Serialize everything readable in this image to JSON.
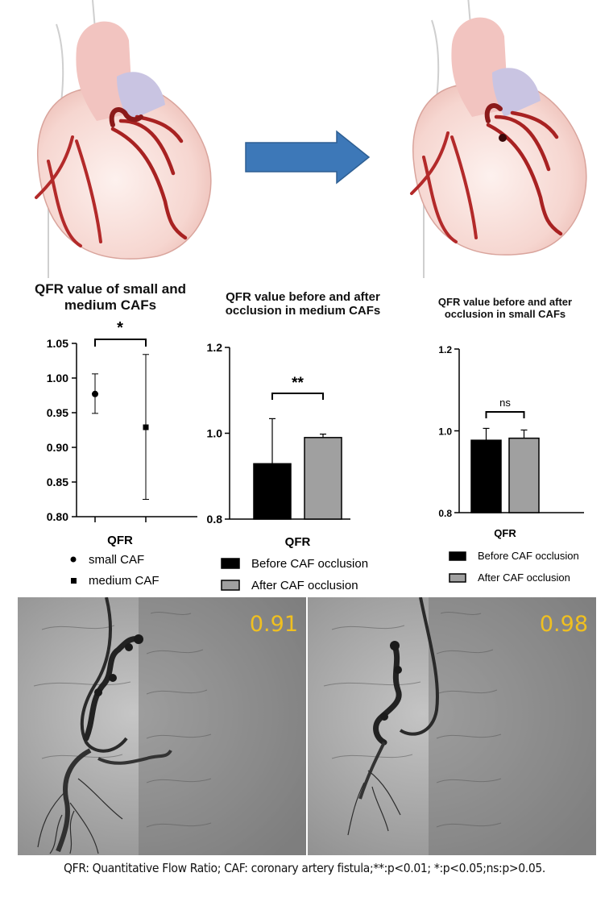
{
  "figure": {
    "arrow_color": "#3d78b8",
    "caption": "QFR: Quantitative Flow Ratio; CAF: coronary artery fistula;**:p<0.01; *:p<0.05;ns:p>0.05."
  },
  "angiograms": [
    {
      "qfr_readout": "0.91"
    },
    {
      "qfr_readout": "0.98"
    }
  ],
  "chart_data": [
    {
      "type": "scatter",
      "title": "QFR value of small and medium CAFs",
      "xlabel": "QFR",
      "ylabel": "",
      "ylim": [
        0.8,
        1.05
      ],
      "yticks": [
        "0.80",
        "0.85",
        "0.90",
        "0.95",
        "1.00",
        "1.05"
      ],
      "series": [
        {
          "name": "small CAF",
          "marker": "circle",
          "y": 0.977,
          "error_low": 0.949,
          "error_high": 1.006
        },
        {
          "name": "medium CAF",
          "marker": "square",
          "y": 0.929,
          "error_low": 0.825,
          "error_high": 1.034
        }
      ],
      "significance": "*",
      "legend_position": "bottom"
    },
    {
      "type": "bar",
      "title": "QFR value before and after occlusion in medium CAFs",
      "xlabel": "QFR",
      "ylabel": "",
      "ylim": [
        0.8,
        1.2
      ],
      "yticks": [
        "0.8",
        "1.0",
        "1.2"
      ],
      "series": [
        {
          "name": "Before CAF occlusion",
          "color": "#000000",
          "value": 0.929,
          "error_high": 1.034
        },
        {
          "name": "After CAF occlusion",
          "color": "#a0a0a0",
          "value": 0.99,
          "error_high": 0.998
        }
      ],
      "significance": "**",
      "legend_position": "bottom"
    },
    {
      "type": "bar",
      "title": "QFR value before and after occlusion in small CAFs",
      "xlabel": "QFR",
      "ylabel": "",
      "ylim": [
        0.8,
        1.2
      ],
      "yticks": [
        "0.8",
        "1.0",
        "1.2"
      ],
      "series": [
        {
          "name": "Before CAF occlusion",
          "color": "#000000",
          "value": 0.977,
          "error_high": 1.006
        },
        {
          "name": "After CAF occlusion",
          "color": "#a0a0a0",
          "value": 0.982,
          "error_high": 1.002
        }
      ],
      "significance": "ns",
      "legend_position": "bottom"
    }
  ]
}
